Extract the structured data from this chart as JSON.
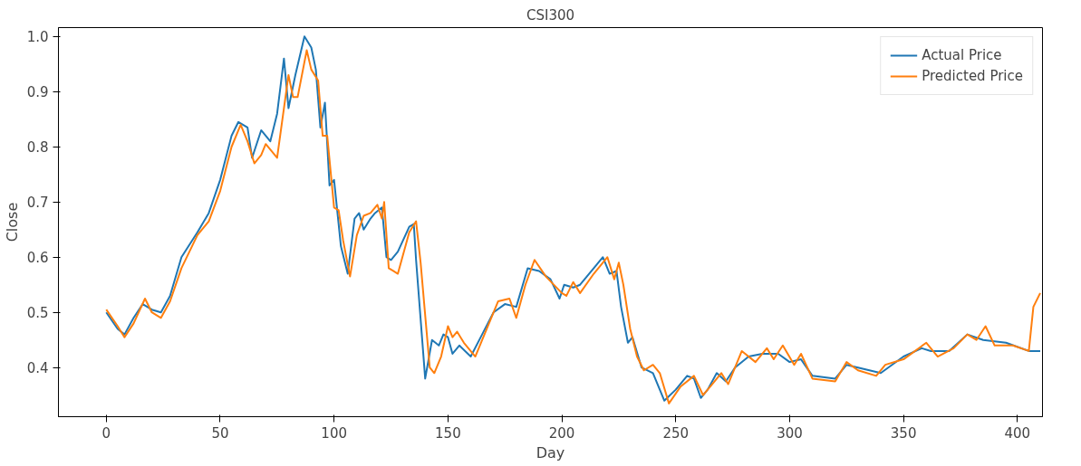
{
  "chart_data": {
    "type": "line",
    "title": "CSI300",
    "xlabel": "Day",
    "ylabel": "Close",
    "xlim": [
      -21,
      411
    ],
    "ylim": [
      0.311,
      1.016
    ],
    "xticks": [
      0,
      50,
      100,
      150,
      200,
      250,
      300,
      350,
      400
    ],
    "yticks": [
      0.4,
      0.5,
      0.6,
      0.7,
      0.8,
      0.9,
      {
        "value": 1,
        "label": "1.0"
      }
    ],
    "grid": false,
    "legend": "top right",
    "line_style": "solid",
    "series": [
      {
        "name": "Actual Price",
        "color": "#1f77b4",
        "x": [
          0,
          5,
          8,
          12,
          16,
          20,
          24,
          28,
          33,
          40,
          45,
          50,
          55,
          58,
          62,
          64,
          68,
          72,
          75,
          78,
          80,
          83,
          87,
          90,
          92,
          94,
          96,
          98,
          100,
          103,
          106,
          109,
          111,
          113,
          116,
          118,
          121,
          123,
          125,
          128,
          133,
          135,
          136,
          140,
          143,
          146,
          148,
          150,
          152,
          155,
          160,
          165,
          170,
          175,
          180,
          185,
          190,
          195,
          199,
          201,
          205,
          208,
          215,
          218,
          221,
          224,
          226,
          229,
          231,
          235,
          240,
          245,
          250,
          255,
          258,
          261,
          264,
          268,
          272,
          276,
          282,
          288,
          295,
          300,
          305,
          310,
          320,
          325,
          330,
          340,
          350,
          358,
          362,
          370,
          378,
          385,
          395,
          405,
          410
        ],
        "values": [
          0.5,
          0.47,
          0.46,
          0.49,
          0.515,
          0.505,
          0.5,
          0.53,
          0.6,
          0.645,
          0.68,
          0.74,
          0.82,
          0.845,
          0.835,
          0.78,
          0.83,
          0.81,
          0.86,
          0.96,
          0.87,
          0.93,
          1.0,
          0.98,
          0.94,
          0.835,
          0.88,
          0.73,
          0.74,
          0.62,
          0.57,
          0.67,
          0.68,
          0.65,
          0.67,
          0.68,
          0.69,
          0.6,
          0.595,
          0.61,
          0.655,
          0.66,
          0.595,
          0.38,
          0.45,
          0.44,
          0.46,
          0.455,
          0.425,
          0.44,
          0.42,
          0.46,
          0.5,
          0.515,
          0.51,
          0.58,
          0.575,
          0.56,
          0.525,
          0.55,
          0.545,
          0.55,
          0.585,
          0.6,
          0.57,
          0.575,
          0.51,
          0.445,
          0.455,
          0.4,
          0.39,
          0.34,
          0.36,
          0.385,
          0.38,
          0.345,
          0.36,
          0.39,
          0.375,
          0.4,
          0.42,
          0.425,
          0.425,
          0.41,
          0.415,
          0.385,
          0.38,
          0.405,
          0.4,
          0.39,
          0.42,
          0.435,
          0.43,
          0.43,
          0.46,
          0.45,
          0.445,
          0.43,
          0.43
        ]
      },
      {
        "name": "Predicted Price",
        "color": "#ff7f0e",
        "x": [
          0,
          5,
          8,
          12,
          17,
          20,
          24,
          28,
          33,
          40,
          45,
          50,
          55,
          59,
          62,
          65,
          68,
          70,
          75,
          80,
          82,
          84,
          88,
          90,
          93,
          95,
          97,
          100,
          102,
          104,
          107,
          110,
          113,
          116,
          119,
          121,
          122,
          124,
          126,
          128,
          133,
          136,
          138,
          142,
          144,
          147,
          150,
          152,
          154,
          157,
          162,
          167,
          172,
          177,
          180,
          184,
          188,
          193,
          200,
          202,
          205,
          208,
          214,
          220,
          223,
          225,
          227,
          230,
          233,
          236,
          240,
          243,
          247,
          252,
          258,
          262,
          266,
          270,
          273,
          279,
          285,
          290,
          293,
          297,
          302,
          305,
          310,
          320,
          325,
          330,
          338,
          342,
          350,
          360,
          365,
          372,
          378,
          382,
          386,
          390,
          398,
          405,
          407,
          410
        ],
        "values": [
          0.505,
          0.475,
          0.455,
          0.48,
          0.525,
          0.5,
          0.49,
          0.52,
          0.58,
          0.64,
          0.665,
          0.72,
          0.8,
          0.84,
          0.81,
          0.77,
          0.785,
          0.805,
          0.78,
          0.93,
          0.89,
          0.89,
          0.975,
          0.94,
          0.92,
          0.82,
          0.82,
          0.69,
          0.685,
          0.63,
          0.565,
          0.64,
          0.675,
          0.68,
          0.695,
          0.67,
          0.7,
          0.58,
          0.575,
          0.57,
          0.645,
          0.665,
          0.59,
          0.4,
          0.39,
          0.42,
          0.475,
          0.455,
          0.465,
          0.445,
          0.42,
          0.47,
          0.52,
          0.525,
          0.49,
          0.55,
          0.595,
          0.565,
          0.535,
          0.53,
          0.555,
          0.535,
          0.57,
          0.6,
          0.56,
          0.59,
          0.55,
          0.47,
          0.42,
          0.395,
          0.405,
          0.39,
          0.335,
          0.365,
          0.385,
          0.35,
          0.37,
          0.39,
          0.37,
          0.43,
          0.41,
          0.435,
          0.415,
          0.44,
          0.405,
          0.425,
          0.38,
          0.375,
          0.41,
          0.395,
          0.385,
          0.405,
          0.415,
          0.445,
          0.42,
          0.435,
          0.46,
          0.45,
          0.475,
          0.44,
          0.44,
          0.43,
          0.51,
          0.535
        ]
      }
    ]
  }
}
